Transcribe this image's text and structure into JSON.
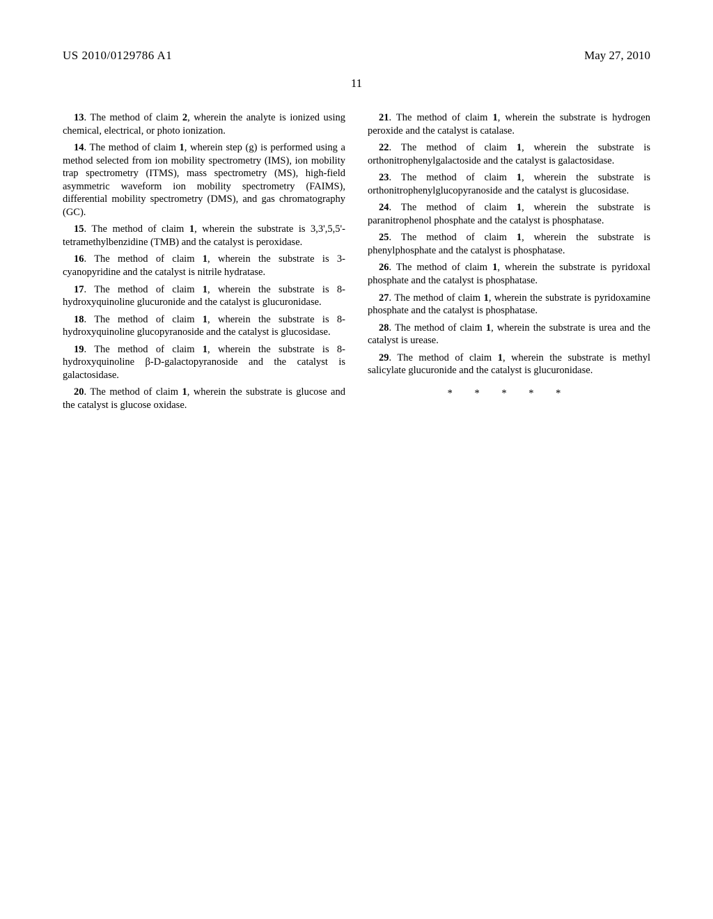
{
  "header": {
    "pub_number": "US 2010/0129786 A1",
    "pub_date": "May 27, 2010"
  },
  "page_number": "11",
  "claims": [
    {
      "num": "13",
      "ref": "2",
      "text": "The method of claim {{ref}}, wherein the analyte is ionized using chemical, electrical, or photo ionization."
    },
    {
      "num": "14",
      "ref": "1",
      "text": "The method of claim {{ref}}, wherein step (g) is performed using a method selected from ion mobility spectrometry (IMS), ion mobility trap spectrometry (ITMS), mass spectrometry (MS), high-field asymmetric waveform ion mobility spectrometry (FAIMS), differential mobility spectrometry (DMS), and gas chromatography (GC)."
    },
    {
      "num": "15",
      "ref": "1",
      "text": "The method of claim {{ref}}, wherein the substrate is 3,3',5,5'-tetramethylbenzidine (TMB) and the catalyst is peroxidase."
    },
    {
      "num": "16",
      "ref": "1",
      "text": "The method of claim {{ref}}, wherein the substrate is 3-cyanopyridine and the catalyst is nitrile hydratase."
    },
    {
      "num": "17",
      "ref": "1",
      "text": "The method of claim {{ref}}, wherein the substrate is 8-hydroxyquinoline glucuronide and the catalyst is glucuronidase."
    },
    {
      "num": "18",
      "ref": "1",
      "text": "The method of claim {{ref}}, wherein the substrate is 8-hydroxyquinoline glucopyranoside and the catalyst is glucosidase."
    },
    {
      "num": "19",
      "ref": "1",
      "text": "The method of claim {{ref}}, wherein the substrate is 8-hydroxyquinoline β-D-galactopyranoside and the catalyst is galactosidase."
    },
    {
      "num": "20",
      "ref": "1",
      "text": "The method of claim {{ref}}, wherein the substrate is glucose and the catalyst is glucose oxidase."
    },
    {
      "num": "21",
      "ref": "1",
      "text": "The method of claim {{ref}}, wherein the substrate is hydrogen peroxide and the catalyst is catalase."
    },
    {
      "num": "22",
      "ref": "1",
      "text": "The method of claim {{ref}}, wherein the substrate is orthonitrophenylgalactoside and the catalyst is galactosidase."
    },
    {
      "num": "23",
      "ref": "1",
      "text": "The method of claim {{ref}}, wherein the substrate is orthonitrophenylglucopyranoside and the catalyst is glucosidase."
    },
    {
      "num": "24",
      "ref": "1",
      "text": "The method of claim {{ref}}, wherein the substrate is paranitrophenol phosphate and the catalyst is phosphatase."
    },
    {
      "num": "25",
      "ref": "1",
      "text": "The method of claim {{ref}}, wherein the substrate is phenylphosphate and the catalyst is phosphatase."
    },
    {
      "num": "26",
      "ref": "1",
      "text": "The method of claim {{ref}}, wherein the substrate is pyridoxal phosphate and the catalyst is phosphatase."
    },
    {
      "num": "27",
      "ref": "1",
      "text": "The method of claim {{ref}}, wherein the substrate is pyridoxamine phosphate and the catalyst is phosphatase."
    },
    {
      "num": "28",
      "ref": "1",
      "text": "The method of claim {{ref}}, wherein the substrate is urea and the catalyst is urease."
    },
    {
      "num": "29",
      "ref": "1",
      "text": "The method of claim {{ref}}, wherein the substrate is methyl salicylate glucuronide and the catalyst is glucuronidase."
    }
  ],
  "end_marker": "* * * * *"
}
